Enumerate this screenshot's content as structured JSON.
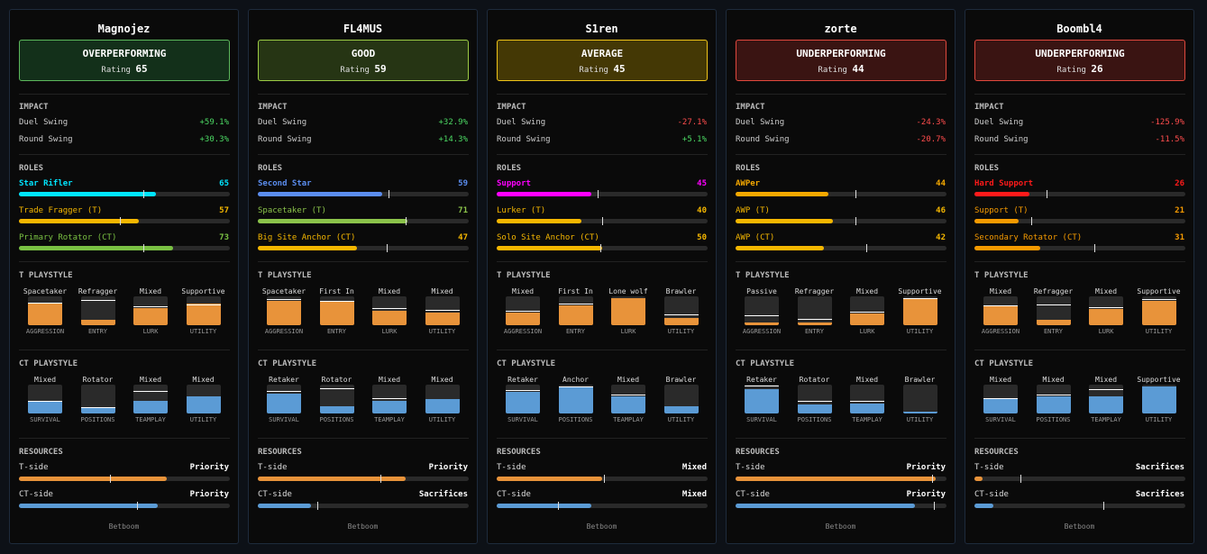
{
  "labels": {
    "impact": "IMPACT",
    "duel": "Duel Swing",
    "round": "Round Swing",
    "roles": "ROLES",
    "t_playstyle": "T PLAYSTYLE",
    "ct_playstyle": "CT PLAYSTYLE",
    "resources": "RESOURCES",
    "t_side": "T-side",
    "ct_side": "CT-side",
    "rating": "Rating",
    "t_axes": [
      "AGGRESSION",
      "ENTRY",
      "LURK",
      "UTILITY"
    ],
    "ct_axes": [
      "SURVIVAL",
      "POSITIONS",
      "TEAMPLAY",
      "UTILITY"
    ]
  },
  "players": [
    {
      "name": "Magnojez",
      "status": "OVERPERFORMING",
      "rating": 65,
      "status_bg": "#13301a",
      "status_border": "#5cb85c",
      "footer": "Betboom",
      "impact": {
        "duel": "+59.1%",
        "round": "+30.3%"
      },
      "roles": [
        {
          "name": "Star Rifler",
          "score": 65,
          "color": "#00e5ff",
          "marker": 59
        },
        {
          "name": "Trade Fragger (T)",
          "score": 57,
          "color": "#f5b700",
          "marker": 48
        },
        {
          "name": "Primary Rotator (CT)",
          "score": 73,
          "color": "#7ac143",
          "marker": 59
        }
      ],
      "t_playstyle": [
        {
          "label": "Spacetaker",
          "fill": 75,
          "marker": 75
        },
        {
          "label": "Refragger",
          "fill": 20,
          "marker": 85
        },
        {
          "label": "Mixed",
          "fill": 60,
          "marker": 62
        },
        {
          "label": "Supportive",
          "fill": 75,
          "marker": 70
        }
      ],
      "ct_playstyle": [
        {
          "label": "Mixed",
          "fill": 40,
          "marker": 42
        },
        {
          "label": "Rotator",
          "fill": 20,
          "marker": 20
        },
        {
          "label": "Mixed",
          "fill": 45,
          "marker": 75
        },
        {
          "label": "Mixed",
          "fill": 60,
          "marker": null
        }
      ],
      "resources": {
        "t": {
          "label": "Priority",
          "fill": 70,
          "marker": 43
        },
        "ct": {
          "label": "Priority",
          "fill": 66,
          "marker": 56
        }
      }
    },
    {
      "name": "FL4MUS",
      "status": "GOOD",
      "rating": 59,
      "status_bg": "#263514",
      "status_border": "#9ccc45",
      "footer": "Betboom",
      "impact": {
        "duel": "+32.9%",
        "round": "+14.3%"
      },
      "roles": [
        {
          "name": "Second Star",
          "score": 59,
          "color": "#5b8def",
          "marker": 62
        },
        {
          "name": "Spacetaker (T)",
          "score": 71,
          "color": "#8bc34a",
          "marker": 70
        },
        {
          "name": "Big Site Anchor (CT)",
          "score": 47,
          "color": "#f5b700",
          "marker": 61
        }
      ],
      "t_playstyle": [
        {
          "label": "Spacetaker",
          "fill": 85,
          "marker": 88
        },
        {
          "label": "First In",
          "fill": 80,
          "marker": 82
        },
        {
          "label": "Mixed",
          "fill": 50,
          "marker": 55
        },
        {
          "label": "Mixed",
          "fill": 45,
          "marker": 50
        }
      ],
      "ct_playstyle": [
        {
          "label": "Retaker",
          "fill": 70,
          "marker": 75
        },
        {
          "label": "Rotator",
          "fill": 25,
          "marker": 85
        },
        {
          "label": "Mixed",
          "fill": 45,
          "marker": 50
        },
        {
          "label": "Mixed",
          "fill": 50,
          "marker": null
        }
      ],
      "resources": {
        "t": {
          "label": "Priority",
          "fill": 70,
          "marker": 58
        },
        "ct": {
          "label": "Sacrifices",
          "fill": 25,
          "marker": 28
        }
      }
    },
    {
      "name": "S1ren",
      "status": "AVERAGE",
      "rating": 45,
      "status_bg": "#443805",
      "status_border": "#f0c419",
      "footer": "Betboom",
      "impact": {
        "duel": "-27.1%",
        "round": "+5.1%"
      },
      "roles": [
        {
          "name": "Support",
          "score": 45,
          "color": "#ff00ff",
          "marker": 48
        },
        {
          "name": "Lurker (T)",
          "score": 40,
          "color": "#f5b700",
          "marker": 50
        },
        {
          "name": "Solo Site Anchor (CT)",
          "score": 50,
          "color": "#f5b700",
          "marker": 49
        }
      ],
      "t_playstyle": [
        {
          "label": "Mixed",
          "fill": 45,
          "marker": 48
        },
        {
          "label": "First In",
          "fill": 70,
          "marker": 72
        },
        {
          "label": "Lone wolf",
          "fill": 95,
          "marker": null
        },
        {
          "label": "Brawler",
          "fill": 25,
          "marker": 35
        }
      ],
      "ct_playstyle": [
        {
          "label": "Retaker",
          "fill": 75,
          "marker": 78
        },
        {
          "label": "Anchor",
          "fill": 95,
          "marker": 90
        },
        {
          "label": "Mixed",
          "fill": 60,
          "marker": 62
        },
        {
          "label": "Brawler",
          "fill": 25,
          "marker": null
        }
      ],
      "resources": {
        "t": {
          "label": "Mixed",
          "fill": 50,
          "marker": 51
        },
        "ct": {
          "label": "Mixed",
          "fill": 45,
          "marker": 29
        }
      }
    },
    {
      "name": "zorte",
      "status": "UNDERPERFORMING",
      "rating": 44,
      "status_bg": "#3a1412",
      "status_border": "#e0483d",
      "footer": "Betboom",
      "impact": {
        "duel": "-24.3%",
        "round": "-20.7%"
      },
      "roles": [
        {
          "name": "AWPer",
          "score": 44,
          "color": "#f5a800",
          "marker": 57
        },
        {
          "name": "AWP (T)",
          "score": 46,
          "color": "#f5b700",
          "marker": 57
        },
        {
          "name": "AWP (CT)",
          "score": 42,
          "color": "#f5b700",
          "marker": 62
        }
      ],
      "t_playstyle": [
        {
          "label": "Passive",
          "fill": 10,
          "marker": 30
        },
        {
          "label": "Refragger",
          "fill": 10,
          "marker": 20
        },
        {
          "label": "Mixed",
          "fill": 40,
          "marker": 45
        },
        {
          "label": "Supportive",
          "fill": 90,
          "marker": 92
        }
      ],
      "ct_playstyle": [
        {
          "label": "Retaker",
          "fill": 85,
          "marker": 95
        },
        {
          "label": "Rotator",
          "fill": 30,
          "marker": 40
        },
        {
          "label": "Mixed",
          "fill": 35,
          "marker": 40
        },
        {
          "label": "Brawler",
          "fill": 5,
          "marker": null
        }
      ],
      "resources": {
        "t": {
          "label": "Priority",
          "fill": 95,
          "marker": 93
        },
        "ct": {
          "label": "Priority",
          "fill": 85,
          "marker": 94
        }
      }
    },
    {
      "name": "Boombl4",
      "status": "UNDERPERFORMING",
      "rating": 26,
      "status_bg": "#3a1412",
      "status_border": "#e0483d",
      "footer": "Betboom",
      "impact": {
        "duel": "-125.9%",
        "round": "-11.5%"
      },
      "roles": [
        {
          "name": "Hard Support",
          "score": 26,
          "color": "#ff1a1a",
          "marker": 34
        },
        {
          "name": "Support (T)",
          "score": 21,
          "color": "#f59a00",
          "marker": 27
        },
        {
          "name": "Secondary Rotator (CT)",
          "score": 31,
          "color": "#f59a00",
          "marker": 57
        }
      ],
      "t_playstyle": [
        {
          "label": "Mixed",
          "fill": 65,
          "marker": 65
        },
        {
          "label": "Refragger",
          "fill": 20,
          "marker": 70
        },
        {
          "label": "Mixed",
          "fill": 55,
          "marker": 60
        },
        {
          "label": "Supportive",
          "fill": 85,
          "marker": 88
        }
      ],
      "ct_playstyle": [
        {
          "label": "Mixed",
          "fill": 50,
          "marker": 50
        },
        {
          "label": "Mixed",
          "fill": 60,
          "marker": 62
        },
        {
          "label": "Mixed",
          "fill": 60,
          "marker": 80
        },
        {
          "label": "Supportive",
          "fill": 95,
          "marker": null
        }
      ],
      "resources": {
        "t": {
          "label": "Sacrifices",
          "fill": 4,
          "marker": 22
        },
        "ct": {
          "label": "Sacrifices",
          "fill": 9,
          "marker": 61
        }
      }
    }
  ]
}
